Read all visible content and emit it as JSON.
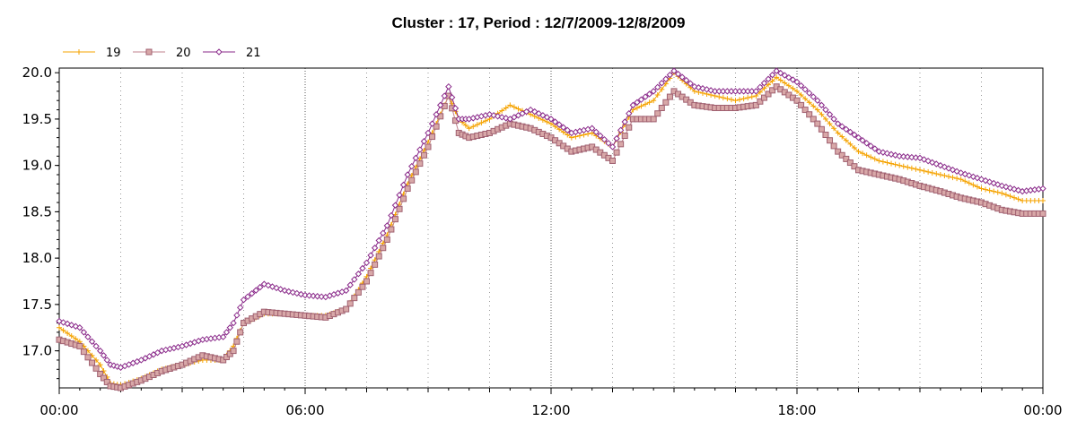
{
  "chart_data": {
    "type": "line",
    "title": "Cluster : 17, Period : 12/7/2009-12/8/2009",
    "xlabel": "",
    "ylabel": "",
    "x_ticks": [
      "00:00",
      "06:00",
      "12:00",
      "18:00",
      "00:00"
    ],
    "x_tick_hours": [
      0,
      6,
      12,
      18,
      24
    ],
    "y_ticks": [
      "17.0",
      "17.5",
      "18.0",
      "18.5",
      "19.0",
      "19.5",
      "20.0"
    ],
    "y_tick_values": [
      17.0,
      17.5,
      18.0,
      18.5,
      19.0,
      19.5,
      20.0
    ],
    "xlim": [
      0,
      24
    ],
    "ylim": [
      16.6,
      20.05
    ],
    "grid": true,
    "legend_position": "top-left",
    "x_unit": "hours",
    "series": [
      {
        "name": "19",
        "color": "#f5a300",
        "marker": "plus",
        "points": [
          [
            0,
            17.25
          ],
          [
            0.5,
            17.1
          ],
          [
            1,
            16.85
          ],
          [
            1.25,
            16.65
          ],
          [
            1.5,
            16.63
          ],
          [
            2,
            16.7
          ],
          [
            2.5,
            16.8
          ],
          [
            3,
            16.85
          ],
          [
            3.5,
            16.9
          ],
          [
            4,
            16.9
          ],
          [
            4.25,
            17.05
          ],
          [
            4.5,
            17.3
          ],
          [
            5,
            17.4
          ],
          [
            5.5,
            17.4
          ],
          [
            6,
            17.38
          ],
          [
            6.5,
            17.38
          ],
          [
            7,
            17.45
          ],
          [
            7.5,
            17.8
          ],
          [
            8,
            18.25
          ],
          [
            8.5,
            18.8
          ],
          [
            9,
            19.25
          ],
          [
            9.5,
            19.75
          ],
          [
            9.75,
            19.5
          ],
          [
            10,
            19.4
          ],
          [
            10.5,
            19.5
          ],
          [
            11,
            19.65
          ],
          [
            11.5,
            19.55
          ],
          [
            12,
            19.45
          ],
          [
            12.5,
            19.3
          ],
          [
            13,
            19.35
          ],
          [
            13.5,
            19.2
          ],
          [
            14,
            19.6
          ],
          [
            14.5,
            19.7
          ],
          [
            15,
            20.0
          ],
          [
            15.5,
            19.8
          ],
          [
            16,
            19.75
          ],
          [
            16.5,
            19.7
          ],
          [
            17,
            19.75
          ],
          [
            17.5,
            19.95
          ],
          [
            18,
            19.8
          ],
          [
            18.5,
            19.6
          ],
          [
            19,
            19.35
          ],
          [
            19.5,
            19.15
          ],
          [
            20,
            19.05
          ],
          [
            20.5,
            19.0
          ],
          [
            21,
            18.95
          ],
          [
            21.5,
            18.9
          ],
          [
            22,
            18.85
          ],
          [
            22.5,
            18.75
          ],
          [
            23,
            18.7
          ],
          [
            23.5,
            18.62
          ],
          [
            24,
            18.62
          ]
        ]
      },
      {
        "name": "20",
        "color": "#c0808c",
        "marker": "square",
        "points": [
          [
            0,
            17.12
          ],
          [
            0.5,
            17.05
          ],
          [
            1,
            16.75
          ],
          [
            1.25,
            16.62
          ],
          [
            1.5,
            16.6
          ],
          [
            2,
            16.68
          ],
          [
            2.5,
            16.78
          ],
          [
            3,
            16.85
          ],
          [
            3.5,
            16.95
          ],
          [
            4,
            16.9
          ],
          [
            4.25,
            17.0
          ],
          [
            4.5,
            17.3
          ],
          [
            5,
            17.42
          ],
          [
            5.5,
            17.4
          ],
          [
            6,
            17.38
          ],
          [
            6.5,
            17.36
          ],
          [
            7,
            17.45
          ],
          [
            7.5,
            17.75
          ],
          [
            8,
            18.2
          ],
          [
            8.5,
            18.75
          ],
          [
            9,
            19.2
          ],
          [
            9.5,
            19.75
          ],
          [
            9.75,
            19.35
          ],
          [
            10,
            19.3
          ],
          [
            10.5,
            19.35
          ],
          [
            11,
            19.45
          ],
          [
            11.5,
            19.4
          ],
          [
            12,
            19.3
          ],
          [
            12.5,
            19.15
          ],
          [
            13,
            19.2
          ],
          [
            13.5,
            19.05
          ],
          [
            14,
            19.5
          ],
          [
            14.5,
            19.5
          ],
          [
            15,
            19.8
          ],
          [
            15.5,
            19.65
          ],
          [
            16,
            19.62
          ],
          [
            16.5,
            19.62
          ],
          [
            17,
            19.65
          ],
          [
            17.5,
            19.85
          ],
          [
            18,
            19.7
          ],
          [
            18.5,
            19.45
          ],
          [
            19,
            19.15
          ],
          [
            19.5,
            18.95
          ],
          [
            20,
            18.9
          ],
          [
            20.5,
            18.85
          ],
          [
            21,
            18.78
          ],
          [
            21.5,
            18.72
          ],
          [
            22,
            18.65
          ],
          [
            22.5,
            18.6
          ],
          [
            23,
            18.52
          ],
          [
            23.5,
            18.48
          ],
          [
            24,
            18.48
          ]
        ]
      },
      {
        "name": "21",
        "color": "#8a2a8a",
        "marker": "diamond",
        "points": [
          [
            0,
            17.32
          ],
          [
            0.5,
            17.25
          ],
          [
            1,
            17.0
          ],
          [
            1.25,
            16.85
          ],
          [
            1.5,
            16.82
          ],
          [
            2,
            16.9
          ],
          [
            2.5,
            17.0
          ],
          [
            3,
            17.05
          ],
          [
            3.5,
            17.12
          ],
          [
            4,
            17.15
          ],
          [
            4.25,
            17.3
          ],
          [
            4.5,
            17.55
          ],
          [
            5,
            17.72
          ],
          [
            5.5,
            17.65
          ],
          [
            6,
            17.6
          ],
          [
            6.5,
            17.58
          ],
          [
            7,
            17.65
          ],
          [
            7.5,
            17.95
          ],
          [
            8,
            18.35
          ],
          [
            8.5,
            18.9
          ],
          [
            9,
            19.35
          ],
          [
            9.5,
            19.85
          ],
          [
            9.75,
            19.5
          ],
          [
            10,
            19.5
          ],
          [
            10.5,
            19.55
          ],
          [
            11,
            19.5
          ],
          [
            11.5,
            19.6
          ],
          [
            12,
            19.5
          ],
          [
            12.5,
            19.35
          ],
          [
            13,
            19.4
          ],
          [
            13.5,
            19.2
          ],
          [
            14,
            19.65
          ],
          [
            14.5,
            19.8
          ],
          [
            15,
            20.02
          ],
          [
            15.5,
            19.85
          ],
          [
            16,
            19.8
          ],
          [
            16.5,
            19.8
          ],
          [
            17,
            19.8
          ],
          [
            17.5,
            20.02
          ],
          [
            18,
            19.9
          ],
          [
            18.5,
            19.7
          ],
          [
            19,
            19.45
          ],
          [
            19.5,
            19.3
          ],
          [
            20,
            19.15
          ],
          [
            20.5,
            19.1
          ],
          [
            21,
            19.08
          ],
          [
            21.5,
            19.0
          ],
          [
            22,
            18.92
          ],
          [
            22.5,
            18.85
          ],
          [
            23,
            18.78
          ],
          [
            23.5,
            18.72
          ],
          [
            24,
            18.75
          ]
        ]
      }
    ]
  }
}
